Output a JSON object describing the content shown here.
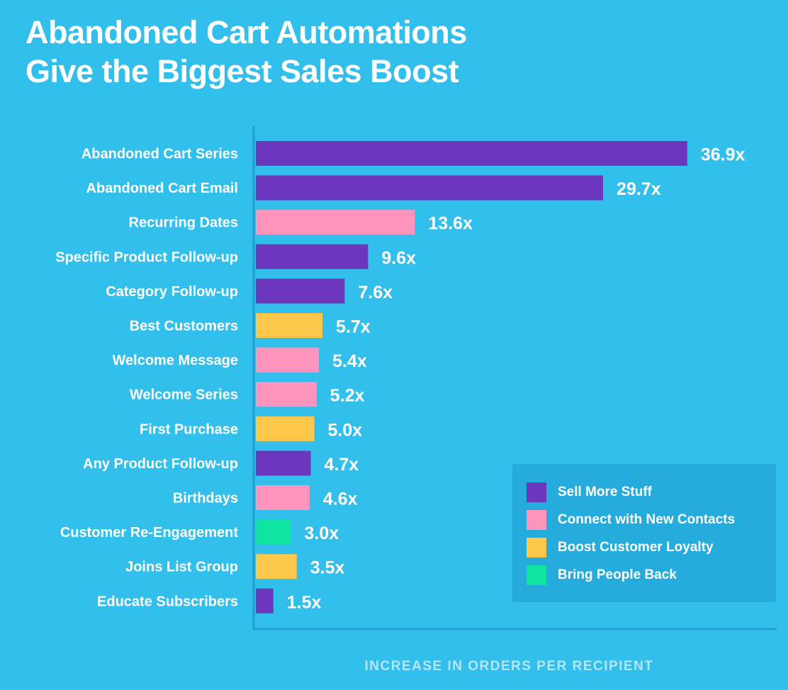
{
  "chart_data": {
    "type": "bar",
    "orientation": "horizontal",
    "title": "Abandoned Cart Automations Give the Biggest Sales Boost",
    "title_lines": [
      "Abandoned Cart Automations",
      "Give the Biggest Sales Boost"
    ],
    "xlabel": "INCREASE IN ORDERS PER RECIPIENT",
    "ylabel": "",
    "grid": false,
    "legend_placement": "bottom-right",
    "value_suffix": "x",
    "categories": [
      "Abandoned Cart Series",
      "Abandoned Cart Email",
      "Recurring Dates",
      "Specific Product Follow-up",
      "Category Follow-up",
      "Best Customers",
      "Welcome Message",
      "Welcome Series",
      "First Purchase",
      "Any Product Follow-up",
      "Birthdays",
      "Customer Re-Engagement",
      "Joins List Group",
      "Educate Subscribers"
    ],
    "values": [
      36.9,
      29.7,
      13.6,
      9.6,
      7.6,
      5.7,
      5.4,
      5.2,
      5.0,
      4.7,
      4.6,
      3.0,
      3.5,
      1.5
    ],
    "value_labels": [
      "36.9x",
      "29.7x",
      "13.6x",
      "9.6x",
      "7.6x",
      "5.7x",
      "5.4x",
      "5.2x",
      "5.0x",
      "4.7x",
      "4.6x",
      "3.0x",
      "3.5x",
      "1.5x"
    ],
    "groups": [
      0,
      0,
      1,
      0,
      0,
      2,
      1,
      1,
      2,
      0,
      1,
      3,
      2,
      0
    ],
    "legend": [
      {
        "name": "Sell More Stuff",
        "color": "#6c36bd"
      },
      {
        "name": "Connect with New Contacts",
        "color": "#ff94bd"
      },
      {
        "name": "Boost Customer Loyalty",
        "color": "#ffc84a"
      },
      {
        "name": "Bring People Back",
        "color": "#0ee3a0"
      }
    ],
    "xlim": [
      0,
      40
    ]
  },
  "colors": {
    "background": "#33bfec",
    "axis": "#1e9fcf",
    "legend_box": "#26acdc"
  }
}
